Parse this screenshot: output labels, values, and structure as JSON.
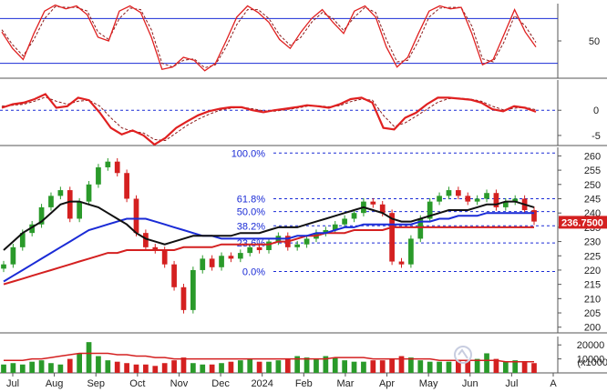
{
  "chart_data": [
    {
      "type": "line",
      "panel": "stochastic",
      "ylim": [
        0,
        100
      ],
      "yticks": [
        {
          "v": 50,
          "label": "50"
        }
      ],
      "reference_levels": [
        80,
        20
      ],
      "series": [
        {
          "style": "solid-red",
          "values": [
            62,
            40,
            25,
            60,
            90,
            98,
            93,
            97,
            85,
            55,
            50,
            90,
            97,
            88,
            55,
            12,
            15,
            28,
            24,
            10,
            20,
            50,
            82,
            97,
            88,
            75,
            52,
            40,
            62,
            80,
            92,
            75,
            60,
            90,
            97,
            82,
            42,
            15,
            28,
            60,
            90,
            97,
            93,
            95,
            60,
            18,
            25,
            58,
            92,
            62,
            42
          ]
        },
        {
          "style": "dashed-red",
          "values": [
            65,
            45,
            30,
            52,
            80,
            96,
            95,
            95,
            90,
            62,
            52,
            80,
            94,
            92,
            65,
            20,
            15,
            24,
            26,
            14,
            18,
            42,
            72,
            92,
            92,
            80,
            58,
            44,
            55,
            75,
            88,
            80,
            64,
            82,
            95,
            88,
            52,
            22,
            24,
            50,
            82,
            94,
            95,
            95,
            70,
            26,
            22,
            48,
            84,
            70,
            48
          ]
        }
      ]
    },
    {
      "type": "line",
      "panel": "oscillator",
      "ylim": [
        -7,
        6
      ],
      "yticks": [
        {
          "v": 0,
          "label": "0"
        },
        {
          "v": -5,
          "label": "-5"
        }
      ],
      "reference_levels": [
        0
      ],
      "series": [
        {
          "style": "solid-red",
          "values": [
            0.5,
            1.2,
            1.5,
            2.2,
            3.2,
            0.5,
            0.8,
            2.5,
            2.0,
            -0.5,
            -3.5,
            -4.8,
            -4.0,
            -5.0,
            -6.8,
            -5.5,
            -3.5,
            -2.2,
            -1.0,
            -0.2,
            0.3,
            0.6,
            0.6,
            0.0,
            -0.4,
            0.0,
            0.3,
            0.6,
            1.0,
            0.8,
            0.5,
            1.2,
            2.2,
            2.5,
            1.5,
            -3.5,
            -3.8,
            -1.5,
            -0.5,
            1.2,
            2.5,
            2.5,
            2.3,
            2.1,
            1.5,
            0.2,
            -0.2,
            0.8,
            0.5,
            -0.3
          ]
        },
        {
          "style": "dashed-red",
          "values": [
            0.8,
            1.0,
            1.2,
            1.8,
            2.6,
            1.8,
            1.2,
            1.8,
            2.0,
            0.8,
            -1.5,
            -3.5,
            -4.2,
            -4.5,
            -5.8,
            -6.0,
            -4.5,
            -3.0,
            -1.8,
            -0.8,
            0.0,
            0.4,
            0.6,
            0.3,
            -0.1,
            -0.2,
            0.1,
            0.4,
            0.8,
            0.9,
            0.7,
            0.9,
            1.7,
            2.2,
            2.0,
            -1.0,
            -3.2,
            -2.5,
            -1.2,
            0.2,
            1.6,
            2.3,
            2.4,
            2.2,
            1.8,
            0.8,
            0.1,
            0.4,
            0.6,
            0.1
          ]
        }
      ]
    },
    {
      "type": "candlestick",
      "panel": "price",
      "ylim": [
        198,
        263
      ],
      "yticks": [
        260,
        255,
        250,
        245,
        240,
        235,
        230,
        225,
        220,
        215,
        210,
        205,
        200
      ],
      "last_price_label": "236.7500",
      "last_price_value": 236.75,
      "fibonacci": [
        {
          "label": "100.0%",
          "value": 261.0
        },
        {
          "label": "61.8%",
          "value": 245.0
        },
        {
          "label": "50.0%",
          "value": 240.5
        },
        {
          "label": "38.2%",
          "value": 235.5
        },
        {
          "label": "23.6%",
          "value": 229.5
        },
        {
          "label": "0.0%",
          "value": 219.5
        }
      ],
      "close": [
        222,
        228,
        233,
        236,
        242,
        246,
        248,
        238,
        244,
        250,
        256,
        258,
        254,
        245,
        233,
        228,
        227,
        222,
        214,
        206,
        220,
        224,
        221,
        225,
        224,
        226,
        228,
        227,
        230,
        232,
        228,
        229,
        231,
        233,
        234,
        236,
        238,
        240,
        244,
        243,
        240,
        223,
        222,
        231,
        238,
        244,
        246,
        248,
        246,
        244,
        245,
        247,
        242,
        244,
        245,
        241,
        237
      ],
      "ma_black": [
        227,
        230,
        233,
        235,
        237,
        240,
        243,
        244,
        244,
        243,
        242,
        240,
        238,
        236,
        233,
        231,
        230,
        229,
        230,
        231,
        232,
        232,
        232,
        232,
        232,
        233,
        233,
        233,
        234,
        235,
        235,
        235,
        236,
        237,
        238,
        239,
        240,
        241,
        242,
        241,
        240,
        238,
        237,
        237,
        238,
        239,
        240,
        241,
        241,
        241,
        242,
        243,
        243,
        244,
        244,
        243,
        242
      ],
      "ma_blue": [
        216,
        218,
        220,
        222,
        224,
        226,
        228,
        230,
        232,
        234,
        235,
        236,
        237,
        238,
        238,
        238,
        237,
        236,
        235,
        234,
        233,
        232,
        232,
        231,
        231,
        231,
        231,
        231,
        231,
        231,
        231,
        232,
        232,
        233,
        233,
        234,
        235,
        235,
        236,
        236,
        236,
        236,
        236,
        236,
        237,
        237,
        238,
        238,
        239,
        239,
        239,
        240,
        240,
        240,
        240,
        240,
        240
      ],
      "ma_red": [
        215,
        216,
        217,
        218,
        219,
        220,
        221,
        222,
        223,
        224,
        225,
        226,
        226,
        227,
        227,
        227,
        227,
        227,
        227,
        228,
        228,
        228,
        228,
        229,
        229,
        229,
        229,
        229,
        229,
        230,
        230,
        231,
        232,
        232,
        233,
        233,
        233,
        234,
        234,
        234,
        234,
        235,
        235,
        235,
        235,
        235,
        235,
        235,
        235,
        235,
        235,
        235,
        235,
        235,
        235,
        235,
        235
      ]
    },
    {
      "type": "bar",
      "panel": "volume",
      "yticks": [
        {
          "v": 20000,
          "label": "20000"
        },
        {
          "v": 10000,
          "label": "10000"
        }
      ],
      "unit_label": "(x1000)",
      "values": [
        6,
        7,
        6,
        8,
        9,
        7,
        6,
        10,
        14,
        22,
        12,
        9,
        8,
        7,
        6,
        6,
        5,
        7,
        9,
        11,
        7,
        6,
        6,
        7,
        8,
        9,
        10,
        8,
        8,
        9,
        10,
        12,
        11,
        10,
        12,
        11,
        9,
        8,
        8,
        9,
        9,
        10,
        12,
        11,
        9,
        8,
        8,
        8,
        9,
        9,
        10,
        14,
        10,
        8,
        9,
        8,
        7
      ],
      "ma_red": [
        9,
        9,
        9,
        10,
        10,
        11,
        12,
        13,
        14,
        14,
        14,
        14,
        13,
        13,
        12,
        12,
        11,
        11,
        10,
        10,
        10,
        10,
        10,
        10,
        10,
        10,
        10,
        10,
        10,
        10,
        10,
        10,
        10,
        10,
        10,
        11,
        11,
        11,
        11,
        10,
        10,
        10,
        10,
        10,
        10,
        10,
        9,
        9,
        9,
        9,
        9,
        9,
        9,
        8,
        8,
        8,
        8
      ],
      "x_month_labels": [
        "Jul",
        "Aug",
        "Sep",
        "Oct",
        "Nov",
        "Dec",
        "2024",
        "Feb",
        "Mar",
        "Apr",
        "May",
        "Jun",
        "Jul",
        "A"
      ]
    }
  ]
}
